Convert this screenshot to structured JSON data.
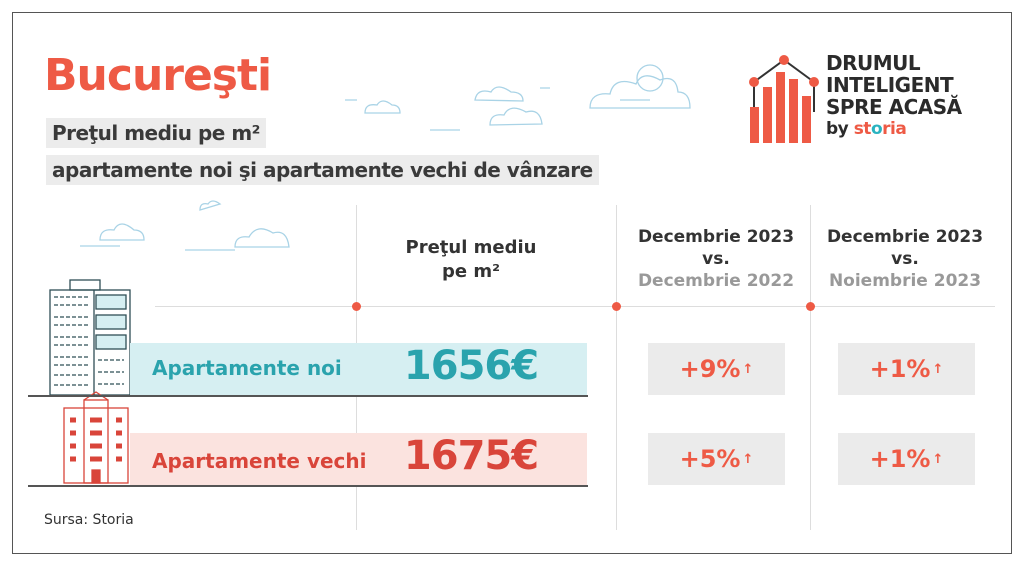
{
  "title": "Bucureşti",
  "subtitle_line1": "Preţul mediu pe m²",
  "subtitle_line2": "apartamente noi şi apartamente vechi de vânzare",
  "logo": {
    "line1": "DRUMUL",
    "line2": "INTELIGENT",
    "line3": "SPRE ACASĂ",
    "by": "by",
    "brand_a": "st",
    "brand_o": "o",
    "brand_b": "ria"
  },
  "columns": {
    "price": {
      "line1": "Preţul mediu",
      "line2": "pe m²"
    },
    "yoy": {
      "line1": "Decembrie 2023",
      "line2": "vs.",
      "line3": "Decembrie 2022"
    },
    "mom": {
      "line1": "Decembrie 2023",
      "line2": "vs.",
      "line3": "Noiembrie 2023"
    }
  },
  "rows": [
    {
      "label": "Apartamente noi",
      "price": "1656€",
      "yoy": "+9%",
      "mom": "+1%",
      "color": "#2aa3ad",
      "bg": "#d6eff2"
    },
    {
      "label": "Apartamente vechi",
      "price": "1675€",
      "yoy": "+5%",
      "mom": "+1%",
      "color": "#d9453a",
      "bg": "#fbe3df"
    }
  ],
  "arrow": "↑",
  "source": "Sursa: Storia",
  "colors": {
    "accent": "#ee5a45",
    "teal": "#2aa3ad"
  }
}
